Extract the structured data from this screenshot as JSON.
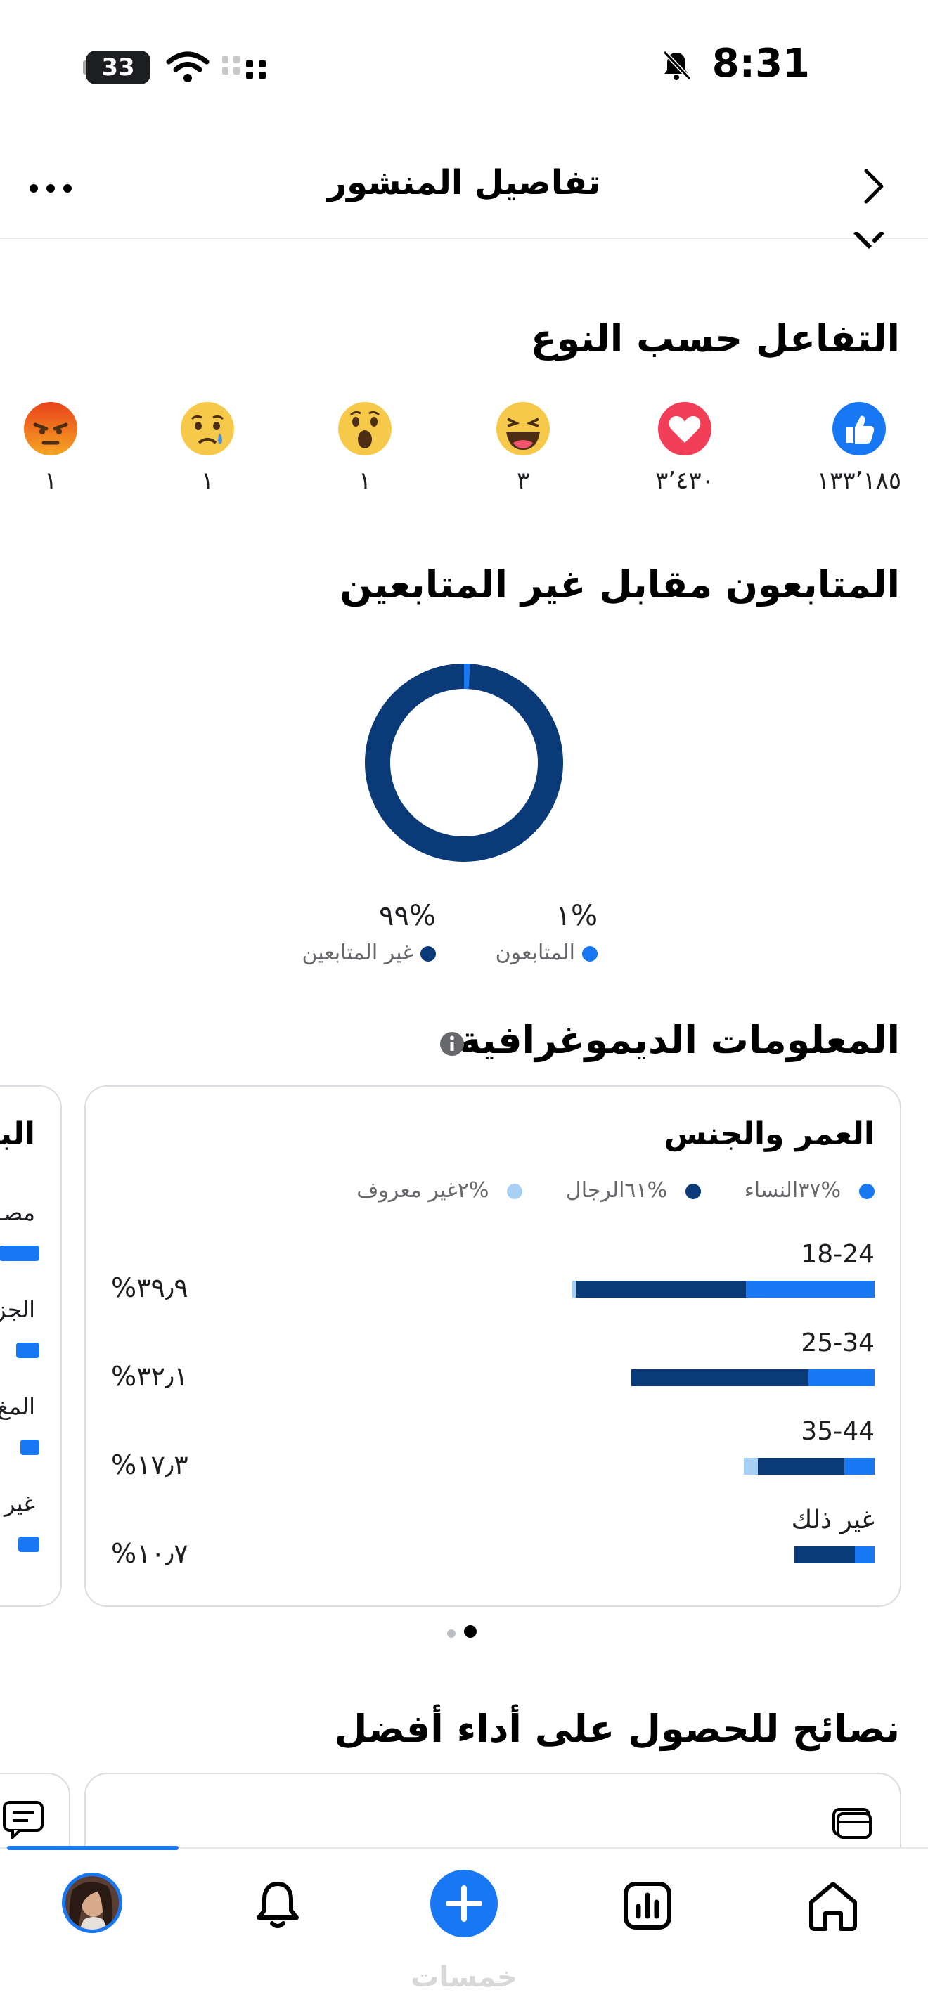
{
  "status_bar": {
    "time": "8:31",
    "battery": "33"
  },
  "header": {
    "title": "تفاصيل المنشور"
  },
  "reactions_section": {
    "title": "التفاعل حسب النوع",
    "items": [
      {
        "icon": "like-reaction-icon",
        "count": "١٣٣٬١٨٥"
      },
      {
        "icon": "love-reaction-icon",
        "count": "٣٬٤٣٠"
      },
      {
        "icon": "haha-reaction-icon",
        "count": "٣"
      },
      {
        "icon": "wow-reaction-icon",
        "count": "١"
      },
      {
        "icon": "sad-reaction-icon",
        "count": "١"
      },
      {
        "icon": "angry-reaction-icon",
        "count": "١"
      }
    ]
  },
  "followers_section": {
    "title": "المتابعون مقابل غير المتابعين",
    "followers": {
      "pct": "%١",
      "label": "المتابعون",
      "value": 0.01,
      "color": "#1877f2"
    },
    "non_followers": {
      "pct": "%٩٩",
      "label": "غير المتابعين",
      "value": 0.99,
      "color": "#0a3a78"
    }
  },
  "demographics": {
    "title": "المعلومات الديموغرافية",
    "age_gender_card": {
      "title": "العمر والجنس",
      "legend": {
        "women": "%٣٧النساء",
        "men": "%٦١الرجال",
        "unknown": "%٢غير معروف"
      },
      "colors": {
        "women": "#1877f2",
        "men": "#0a3a78",
        "unknown": "#a8d0f5"
      },
      "rows": [
        {
          "label": "18-24",
          "pct": "٣٩٫٩%",
          "total": 39.9,
          "women": 17.0,
          "men": 22.4,
          "unknown": 0.5
        },
        {
          "label": "25-34",
          "pct": "٣٢٫١%",
          "total": 32.1,
          "women": 8.7,
          "men": 23.4,
          "unknown": 0.0
        },
        {
          "label": "35-44",
          "pct": "١٧٫٣%",
          "total": 17.3,
          "women": 4.0,
          "men": 11.4,
          "unknown": 1.9
        },
        {
          "label": "غير ذلك",
          "pct": "١٠٫٧%",
          "total": 10.7,
          "women": 2.6,
          "men": 8.1,
          "unknown": 0.0
        }
      ]
    },
    "side_card": {
      "title": "البا",
      "items": [
        {
          "label": "مصـ",
          "value": 0.95
        },
        {
          "label": "الجز",
          "value": 0.55
        },
        {
          "label": "المغ",
          "value": 0.45
        },
        {
          "label": "غير",
          "value": 0.5
        }
      ]
    }
  },
  "tips_section": {
    "title": "نصائح للحصول على أداء أفضل"
  },
  "bottom_nav": {
    "items": [
      "profile-avatar",
      "notifications-icon",
      "create-plus-icon",
      "insights-icon",
      "home-icon"
    ],
    "watermark": "خمسات"
  }
}
